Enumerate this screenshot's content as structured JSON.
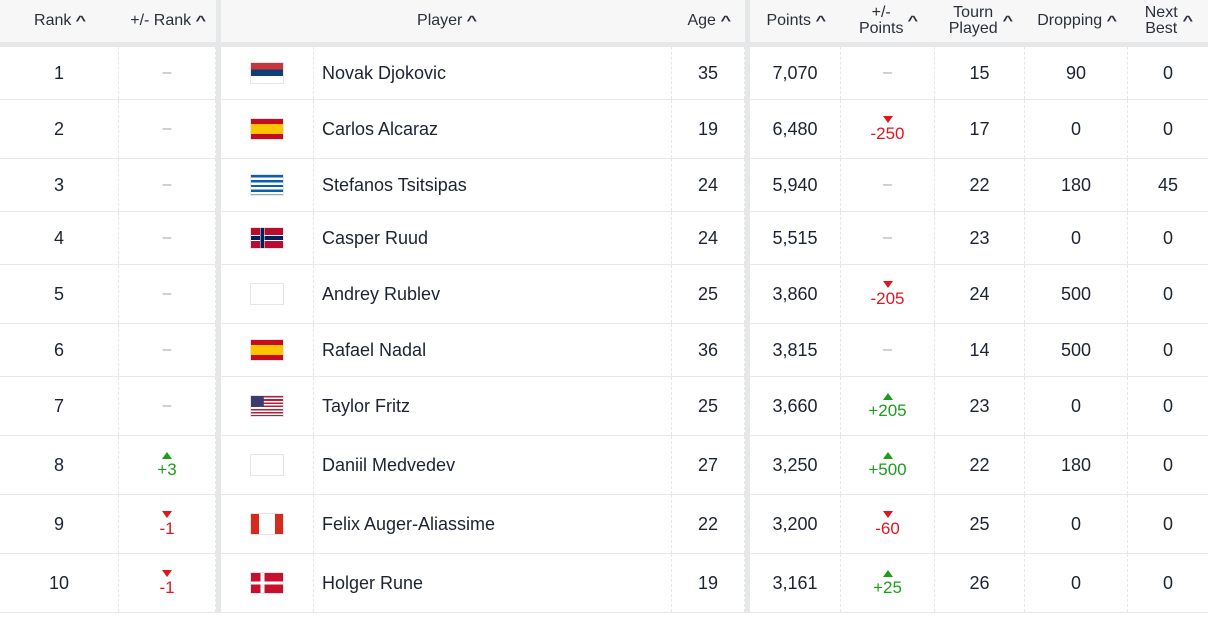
{
  "headers": {
    "rank": "Rank",
    "rank_change": "+/- Rank",
    "player": "Player",
    "age": "Age",
    "points": "Points",
    "points_change_1": "+/-",
    "points_change_2": "Points",
    "tourn_1": "Tourn",
    "tourn_2": "Played",
    "dropping": "Dropping",
    "next_1": "Next",
    "next_2": "Best"
  },
  "colors": {
    "up": "#1b9e1b",
    "down": "#e0161e"
  },
  "rows": [
    {
      "rank": "1",
      "rank_change": "–",
      "flag": "serbia",
      "player": "Novak Djokovic",
      "age": "35",
      "points": "7,070",
      "points_change": "–",
      "tourn": "15",
      "dropping": "90",
      "next": "0"
    },
    {
      "rank": "2",
      "rank_change": "–",
      "flag": "spain",
      "player": "Carlos Alcaraz",
      "age": "19",
      "points": "6,480",
      "points_change": "-250",
      "tourn": "17",
      "dropping": "0",
      "next": "0"
    },
    {
      "rank": "3",
      "rank_change": "–",
      "flag": "greece",
      "player": "Stefanos Tsitsipas",
      "age": "24",
      "points": "5,940",
      "points_change": "–",
      "tourn": "22",
      "dropping": "180",
      "next": "45"
    },
    {
      "rank": "4",
      "rank_change": "–",
      "flag": "norway",
      "player": "Casper Ruud",
      "age": "24",
      "points": "5,515",
      "points_change": "–",
      "tourn": "23",
      "dropping": "0",
      "next": "0"
    },
    {
      "rank": "5",
      "rank_change": "–",
      "flag": "none",
      "player": "Andrey Rublev",
      "age": "25",
      "points": "3,860",
      "points_change": "-205",
      "tourn": "24",
      "dropping": "500",
      "next": "0"
    },
    {
      "rank": "6",
      "rank_change": "–",
      "flag": "spain",
      "player": "Rafael Nadal",
      "age": "36",
      "points": "3,815",
      "points_change": "–",
      "tourn": "14",
      "dropping": "500",
      "next": "0"
    },
    {
      "rank": "7",
      "rank_change": "–",
      "flag": "usa",
      "player": "Taylor Fritz",
      "age": "25",
      "points": "3,660",
      "points_change": "+205",
      "tourn": "23",
      "dropping": "0",
      "next": "0"
    },
    {
      "rank": "8",
      "rank_change": "+3",
      "flag": "none",
      "player": "Daniil Medvedev",
      "age": "27",
      "points": "3,250",
      "points_change": "+500",
      "tourn": "22",
      "dropping": "180",
      "next": "0"
    },
    {
      "rank": "9",
      "rank_change": "-1",
      "flag": "canada",
      "player": "Felix Auger-Aliassime",
      "age": "22",
      "points": "3,200",
      "points_change": "-60",
      "tourn": "25",
      "dropping": "0",
      "next": "0"
    },
    {
      "rank": "10",
      "rank_change": "-1",
      "flag": "denmark",
      "player": "Holger Rune",
      "age": "19",
      "points": "3,161",
      "points_change": "+25",
      "tourn": "26",
      "dropping": "0",
      "next": "0"
    }
  ]
}
